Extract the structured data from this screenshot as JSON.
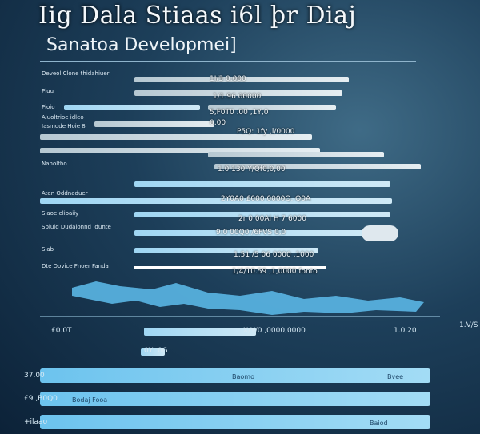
{
  "header": {
    "title": "Iig Dala Stiaas i6l þr Diaj",
    "subtitle": "Sanatoa Developmei]"
  },
  "rows": [
    {
      "label": "Deveol Clone thidahiuer",
      "value": "1I/3 0.000"
    },
    {
      "label": "Pluu",
      "value": "1/1.96 00000"
    },
    {
      "label": "Pioio",
      "value": "5,F0T0 .00 ,1Y,0"
    },
    {
      "label": "Aluoltrioe idleo",
      "value": "0,00"
    },
    {
      "label": "Iasmdde Hoie 8",
      "value": "P5Q: 1fy ,i/0000"
    },
    {
      "label": "Nanoltho",
      "value": "1.0 130 Y/Qf0,0,00"
    },
    {
      "label": "Aten Oddnaduer",
      "value": "2Y0A0  £000 0000Q. Q0A"
    },
    {
      "label": "Siaoe elioaiiy",
      "value": "2r 0 00Al H 7 6000"
    },
    {
      "label": "Sbiuid Dudalonnd ,dunte",
      "value": "9.0 00Q0 /6FVS 0,0"
    },
    {
      "label": "Siab",
      "value": "1,51 /5 06 0000 ,1000"
    },
    {
      "label": "Dte Dovice Fnoer Fanda",
      "value": "1/4/10.59 ,1,0000 fonto"
    }
  ],
  "footer": {
    "left": "£0.0T",
    "middle": "X/Y/0 ,0000,0000",
    "right": "1.0.20",
    "sub": "0Y, 0G",
    "edge": "1.V/S"
  },
  "bottom": [
    {
      "left": "37.00",
      "label": "Baomo",
      "right": "Bvee"
    },
    {
      "left": "£9 ,B0Q0",
      "label": "Bodaj Fooa",
      "right": ""
    },
    {
      "left": "+ilaao",
      "label": "Baiod",
      "right": ""
    }
  ]
}
